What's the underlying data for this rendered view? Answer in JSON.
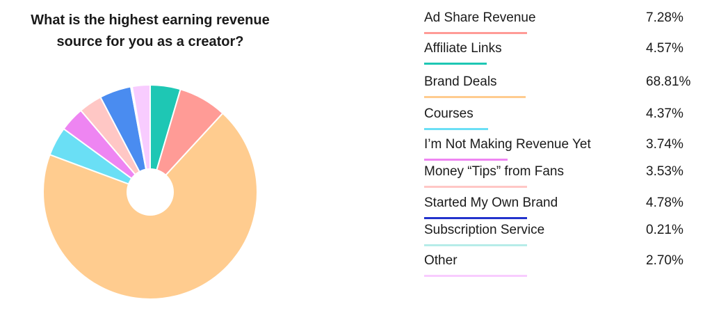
{
  "chart_data": {
    "type": "pie",
    "title": "What is the highest earning revenue\nsource for you as a creator?",
    "legend_position": "right",
    "slices": [
      {
        "label": "Ad Share Revenue",
        "value": 7.28,
        "value_label": "7.28%",
        "color": "#ff9b96"
      },
      {
        "label": "Affiliate Links",
        "value": 4.57,
        "value_label": "4.57%",
        "color": "#1ec7b4"
      },
      {
        "label": "Brand Deals",
        "value": 68.81,
        "value_label": "68.81%",
        "color": "#ffcc8f"
      },
      {
        "label": "Courses",
        "value": 4.37,
        "value_label": "4.37%",
        "color": "#6adff5"
      },
      {
        "label": "I’m Not Making Revenue Yet",
        "value": 3.74,
        "value_label": "3.74%",
        "color": "#ee85f2"
      },
      {
        "label": "Money “Tips” from Fans",
        "value": 3.53,
        "value_label": "3.53%",
        "color": "#ffc7c5"
      },
      {
        "label": "Started My Own Brand",
        "value": 4.78,
        "value_label": "4.78%",
        "color": "#4a8cf0"
      },
      {
        "label": "Subscription Service",
        "value": 0.21,
        "value_label": "0.21%",
        "color": "#b6ece9"
      },
      {
        "label": "Other",
        "value": 2.7,
        "value_label": "2.70%",
        "color": "#f8ccff"
      }
    ],
    "legend_line_colors": [
      "#ff9b96",
      "#1ec7b4",
      "#ffcc8f",
      "#6adff5",
      "#ee85f2",
      "#ffc7c5",
      "#2233cc",
      "#b6ece9",
      "#f8ccff"
    ],
    "draw_order": [
      "Affiliate Links",
      "Ad Share Revenue",
      "Brand Deals",
      "Courses",
      "I’m Not Making Revenue Yet",
      "Money “Tips” from Fans",
      "Started My Own Brand",
      "Subscription Service",
      "Other"
    ]
  }
}
